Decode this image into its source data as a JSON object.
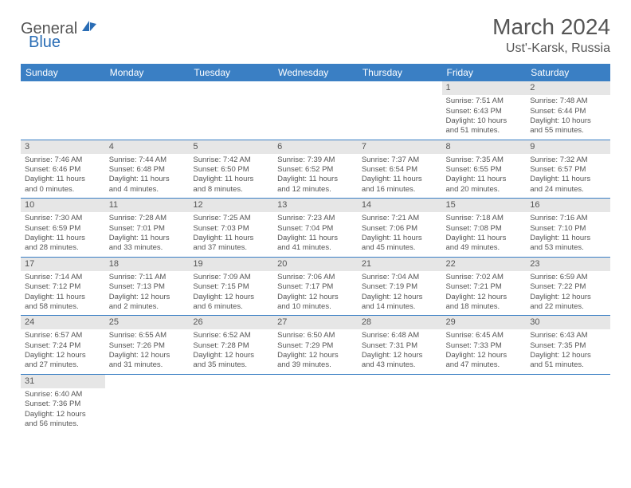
{
  "logo": {
    "part1": "General",
    "part2": "Blue"
  },
  "title": "March 2024",
  "location": "Ust'-Karsk, Russia",
  "colors": {
    "header_bg": "#3a7fc4",
    "header_fg": "#ffffff",
    "daynum_bg": "#e6e6e6",
    "text": "#555555",
    "rule": "#3a7fc4"
  },
  "weekdays": [
    "Sunday",
    "Monday",
    "Tuesday",
    "Wednesday",
    "Thursday",
    "Friday",
    "Saturday"
  ],
  "weeks": [
    [
      null,
      null,
      null,
      null,
      null,
      {
        "d": "1",
        "sr": "Sunrise: 7:51 AM",
        "ss": "Sunset: 6:43 PM",
        "dl1": "Daylight: 10 hours",
        "dl2": "and 51 minutes."
      },
      {
        "d": "2",
        "sr": "Sunrise: 7:48 AM",
        "ss": "Sunset: 6:44 PM",
        "dl1": "Daylight: 10 hours",
        "dl2": "and 55 minutes."
      }
    ],
    [
      {
        "d": "3",
        "sr": "Sunrise: 7:46 AM",
        "ss": "Sunset: 6:46 PM",
        "dl1": "Daylight: 11 hours",
        "dl2": "and 0 minutes."
      },
      {
        "d": "4",
        "sr": "Sunrise: 7:44 AM",
        "ss": "Sunset: 6:48 PM",
        "dl1": "Daylight: 11 hours",
        "dl2": "and 4 minutes."
      },
      {
        "d": "5",
        "sr": "Sunrise: 7:42 AM",
        "ss": "Sunset: 6:50 PM",
        "dl1": "Daylight: 11 hours",
        "dl2": "and 8 minutes."
      },
      {
        "d": "6",
        "sr": "Sunrise: 7:39 AM",
        "ss": "Sunset: 6:52 PM",
        "dl1": "Daylight: 11 hours",
        "dl2": "and 12 minutes."
      },
      {
        "d": "7",
        "sr": "Sunrise: 7:37 AM",
        "ss": "Sunset: 6:54 PM",
        "dl1": "Daylight: 11 hours",
        "dl2": "and 16 minutes."
      },
      {
        "d": "8",
        "sr": "Sunrise: 7:35 AM",
        "ss": "Sunset: 6:55 PM",
        "dl1": "Daylight: 11 hours",
        "dl2": "and 20 minutes."
      },
      {
        "d": "9",
        "sr": "Sunrise: 7:32 AM",
        "ss": "Sunset: 6:57 PM",
        "dl1": "Daylight: 11 hours",
        "dl2": "and 24 minutes."
      }
    ],
    [
      {
        "d": "10",
        "sr": "Sunrise: 7:30 AM",
        "ss": "Sunset: 6:59 PM",
        "dl1": "Daylight: 11 hours",
        "dl2": "and 28 minutes."
      },
      {
        "d": "11",
        "sr": "Sunrise: 7:28 AM",
        "ss": "Sunset: 7:01 PM",
        "dl1": "Daylight: 11 hours",
        "dl2": "and 33 minutes."
      },
      {
        "d": "12",
        "sr": "Sunrise: 7:25 AM",
        "ss": "Sunset: 7:03 PM",
        "dl1": "Daylight: 11 hours",
        "dl2": "and 37 minutes."
      },
      {
        "d": "13",
        "sr": "Sunrise: 7:23 AM",
        "ss": "Sunset: 7:04 PM",
        "dl1": "Daylight: 11 hours",
        "dl2": "and 41 minutes."
      },
      {
        "d": "14",
        "sr": "Sunrise: 7:21 AM",
        "ss": "Sunset: 7:06 PM",
        "dl1": "Daylight: 11 hours",
        "dl2": "and 45 minutes."
      },
      {
        "d": "15",
        "sr": "Sunrise: 7:18 AM",
        "ss": "Sunset: 7:08 PM",
        "dl1": "Daylight: 11 hours",
        "dl2": "and 49 minutes."
      },
      {
        "d": "16",
        "sr": "Sunrise: 7:16 AM",
        "ss": "Sunset: 7:10 PM",
        "dl1": "Daylight: 11 hours",
        "dl2": "and 53 minutes."
      }
    ],
    [
      {
        "d": "17",
        "sr": "Sunrise: 7:14 AM",
        "ss": "Sunset: 7:12 PM",
        "dl1": "Daylight: 11 hours",
        "dl2": "and 58 minutes."
      },
      {
        "d": "18",
        "sr": "Sunrise: 7:11 AM",
        "ss": "Sunset: 7:13 PM",
        "dl1": "Daylight: 12 hours",
        "dl2": "and 2 minutes."
      },
      {
        "d": "19",
        "sr": "Sunrise: 7:09 AM",
        "ss": "Sunset: 7:15 PM",
        "dl1": "Daylight: 12 hours",
        "dl2": "and 6 minutes."
      },
      {
        "d": "20",
        "sr": "Sunrise: 7:06 AM",
        "ss": "Sunset: 7:17 PM",
        "dl1": "Daylight: 12 hours",
        "dl2": "and 10 minutes."
      },
      {
        "d": "21",
        "sr": "Sunrise: 7:04 AM",
        "ss": "Sunset: 7:19 PM",
        "dl1": "Daylight: 12 hours",
        "dl2": "and 14 minutes."
      },
      {
        "d": "22",
        "sr": "Sunrise: 7:02 AM",
        "ss": "Sunset: 7:21 PM",
        "dl1": "Daylight: 12 hours",
        "dl2": "and 18 minutes."
      },
      {
        "d": "23",
        "sr": "Sunrise: 6:59 AM",
        "ss": "Sunset: 7:22 PM",
        "dl1": "Daylight: 12 hours",
        "dl2": "and 22 minutes."
      }
    ],
    [
      {
        "d": "24",
        "sr": "Sunrise: 6:57 AM",
        "ss": "Sunset: 7:24 PM",
        "dl1": "Daylight: 12 hours",
        "dl2": "and 27 minutes."
      },
      {
        "d": "25",
        "sr": "Sunrise: 6:55 AM",
        "ss": "Sunset: 7:26 PM",
        "dl1": "Daylight: 12 hours",
        "dl2": "and 31 minutes."
      },
      {
        "d": "26",
        "sr": "Sunrise: 6:52 AM",
        "ss": "Sunset: 7:28 PM",
        "dl1": "Daylight: 12 hours",
        "dl2": "and 35 minutes."
      },
      {
        "d": "27",
        "sr": "Sunrise: 6:50 AM",
        "ss": "Sunset: 7:29 PM",
        "dl1": "Daylight: 12 hours",
        "dl2": "and 39 minutes."
      },
      {
        "d": "28",
        "sr": "Sunrise: 6:48 AM",
        "ss": "Sunset: 7:31 PM",
        "dl1": "Daylight: 12 hours",
        "dl2": "and 43 minutes."
      },
      {
        "d": "29",
        "sr": "Sunrise: 6:45 AM",
        "ss": "Sunset: 7:33 PM",
        "dl1": "Daylight: 12 hours",
        "dl2": "and 47 minutes."
      },
      {
        "d": "30",
        "sr": "Sunrise: 6:43 AM",
        "ss": "Sunset: 7:35 PM",
        "dl1": "Daylight: 12 hours",
        "dl2": "and 51 minutes."
      }
    ],
    [
      {
        "d": "31",
        "sr": "Sunrise: 6:40 AM",
        "ss": "Sunset: 7:36 PM",
        "dl1": "Daylight: 12 hours",
        "dl2": "and 56 minutes."
      },
      null,
      null,
      null,
      null,
      null,
      null
    ]
  ]
}
